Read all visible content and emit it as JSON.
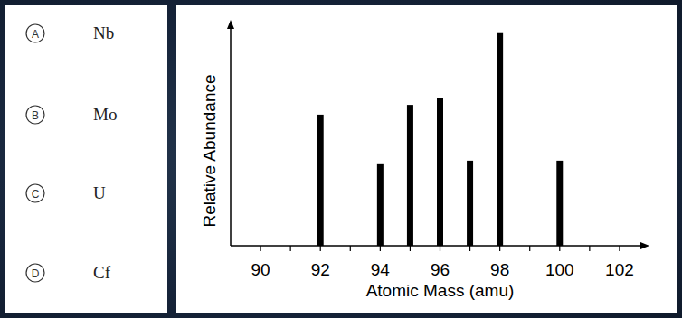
{
  "options": [
    {
      "letter": "A",
      "text": "Nb"
    },
    {
      "letter": "B",
      "text": "Mo"
    },
    {
      "letter": "C",
      "text": "U"
    },
    {
      "letter": "D",
      "text": "Cf"
    }
  ],
  "chart_data": {
    "type": "bar",
    "x_label": "Atomic Mass (amu)",
    "y_label": "Relative Abundance",
    "x": [
      92,
      94,
      95,
      96,
      97,
      98,
      100
    ],
    "values": [
      14.8,
      9.3,
      15.9,
      16.7,
      9.6,
      24.1,
      9.6
    ],
    "color": "#000000",
    "xlim": [
      89,
      103
    ],
    "xticks": [
      90,
      92,
      94,
      96,
      98,
      100,
      102
    ],
    "ylim": [
      0,
      25.5
    ],
    "yticks": [],
    "tick_labels": "x",
    "grid": false
  }
}
